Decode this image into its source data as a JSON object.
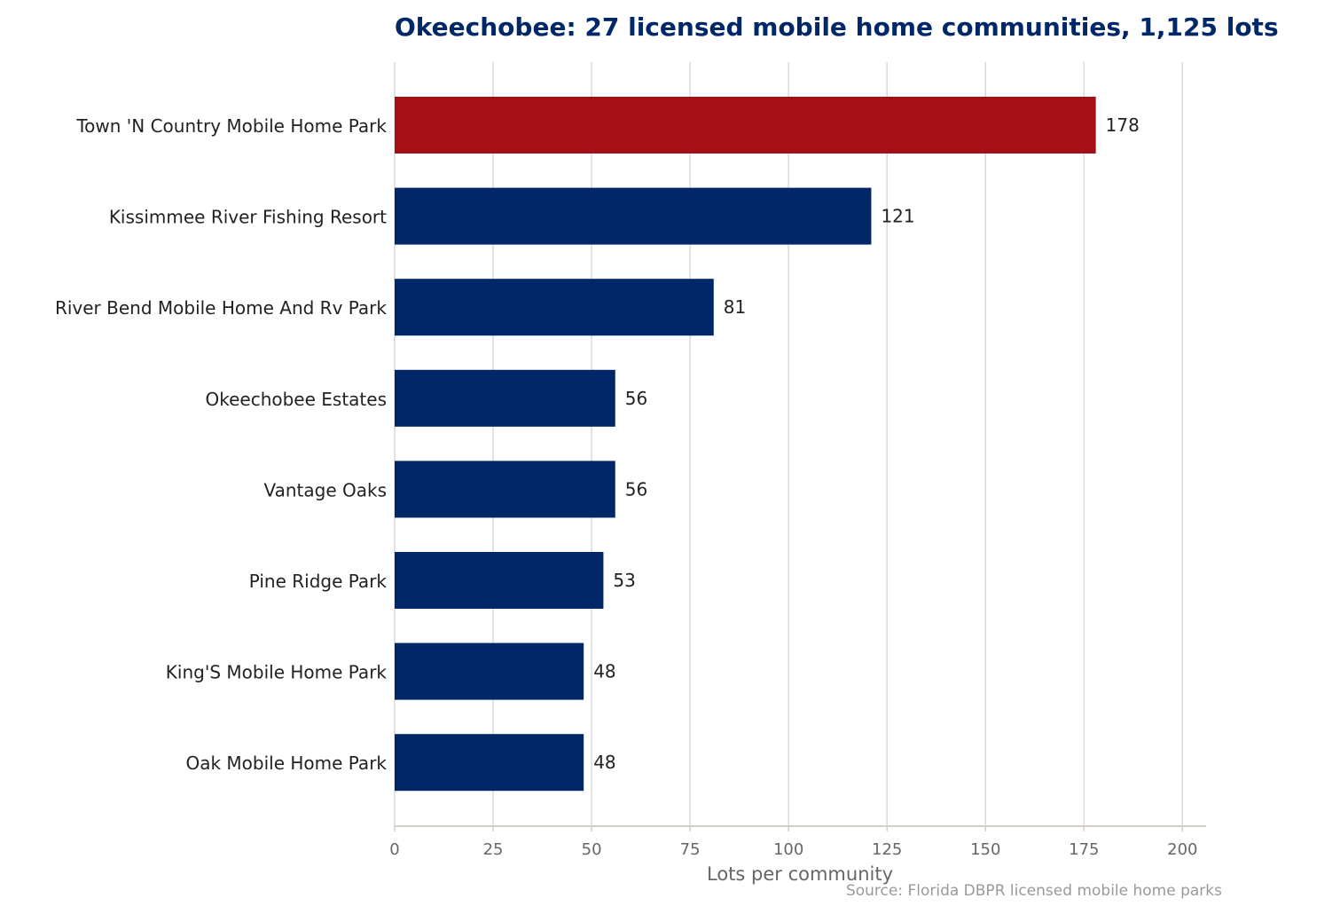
{
  "chart_data": {
    "type": "bar",
    "orientation": "horizontal",
    "title": "Okeechobee: 27 licensed mobile home communities, 1,125 lots",
    "xlabel": "Lots per community",
    "ylabel": "",
    "categories": [
      "Town 'N Country Mobile Home Park",
      "Kissimmee River Fishing Resort",
      "River Bend Mobile Home And Rv Park",
      "Okeechobee Estates",
      "Vantage Oaks",
      "Pine Ridge Park",
      "King'S Mobile Home Park",
      "Oak Mobile Home Park"
    ],
    "values": [
      178,
      121,
      81,
      56,
      56,
      53,
      48,
      48
    ],
    "xlim": [
      0,
      206
    ],
    "xticks": [
      0,
      25,
      50,
      75,
      100,
      125,
      150,
      175,
      200
    ],
    "grid": "vertical",
    "highlight_index": 0,
    "colors": {
      "highlight": "#A50F15",
      "bar": "#002868",
      "grid": "#d9d9d9",
      "axis": "#d4d0c4"
    },
    "source": "Source: Florida DBPR licensed mobile home parks"
  }
}
